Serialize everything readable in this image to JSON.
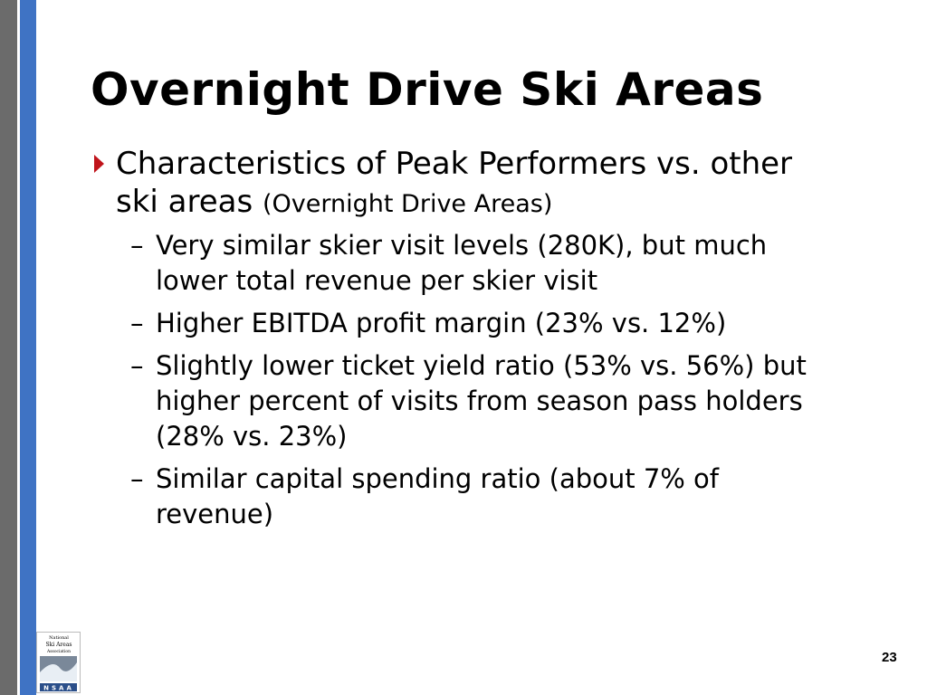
{
  "slide": {
    "title": "Overnight Drive Ski Areas",
    "bullet": {
      "text": "Characteristics of Peak Performers vs. other ski areas",
      "note": "(Overnight Drive Areas)"
    },
    "subbullets": [
      "Very similar skier visit levels (280K), but much lower total revenue per skier visit",
      "Higher EBITDA profit margin (23% vs. 12%)",
      "Slightly lower ticket yield ratio (53% vs. 56%) but higher percent of visits from season pass holders (28% vs. 23%)",
      "Similar capital spending ratio (about 7% of revenue)"
    ],
    "logo": {
      "lines": [
        "National",
        "Ski Areas",
        "Association"
      ],
      "mark": "NSAA"
    },
    "page_number": "23"
  }
}
